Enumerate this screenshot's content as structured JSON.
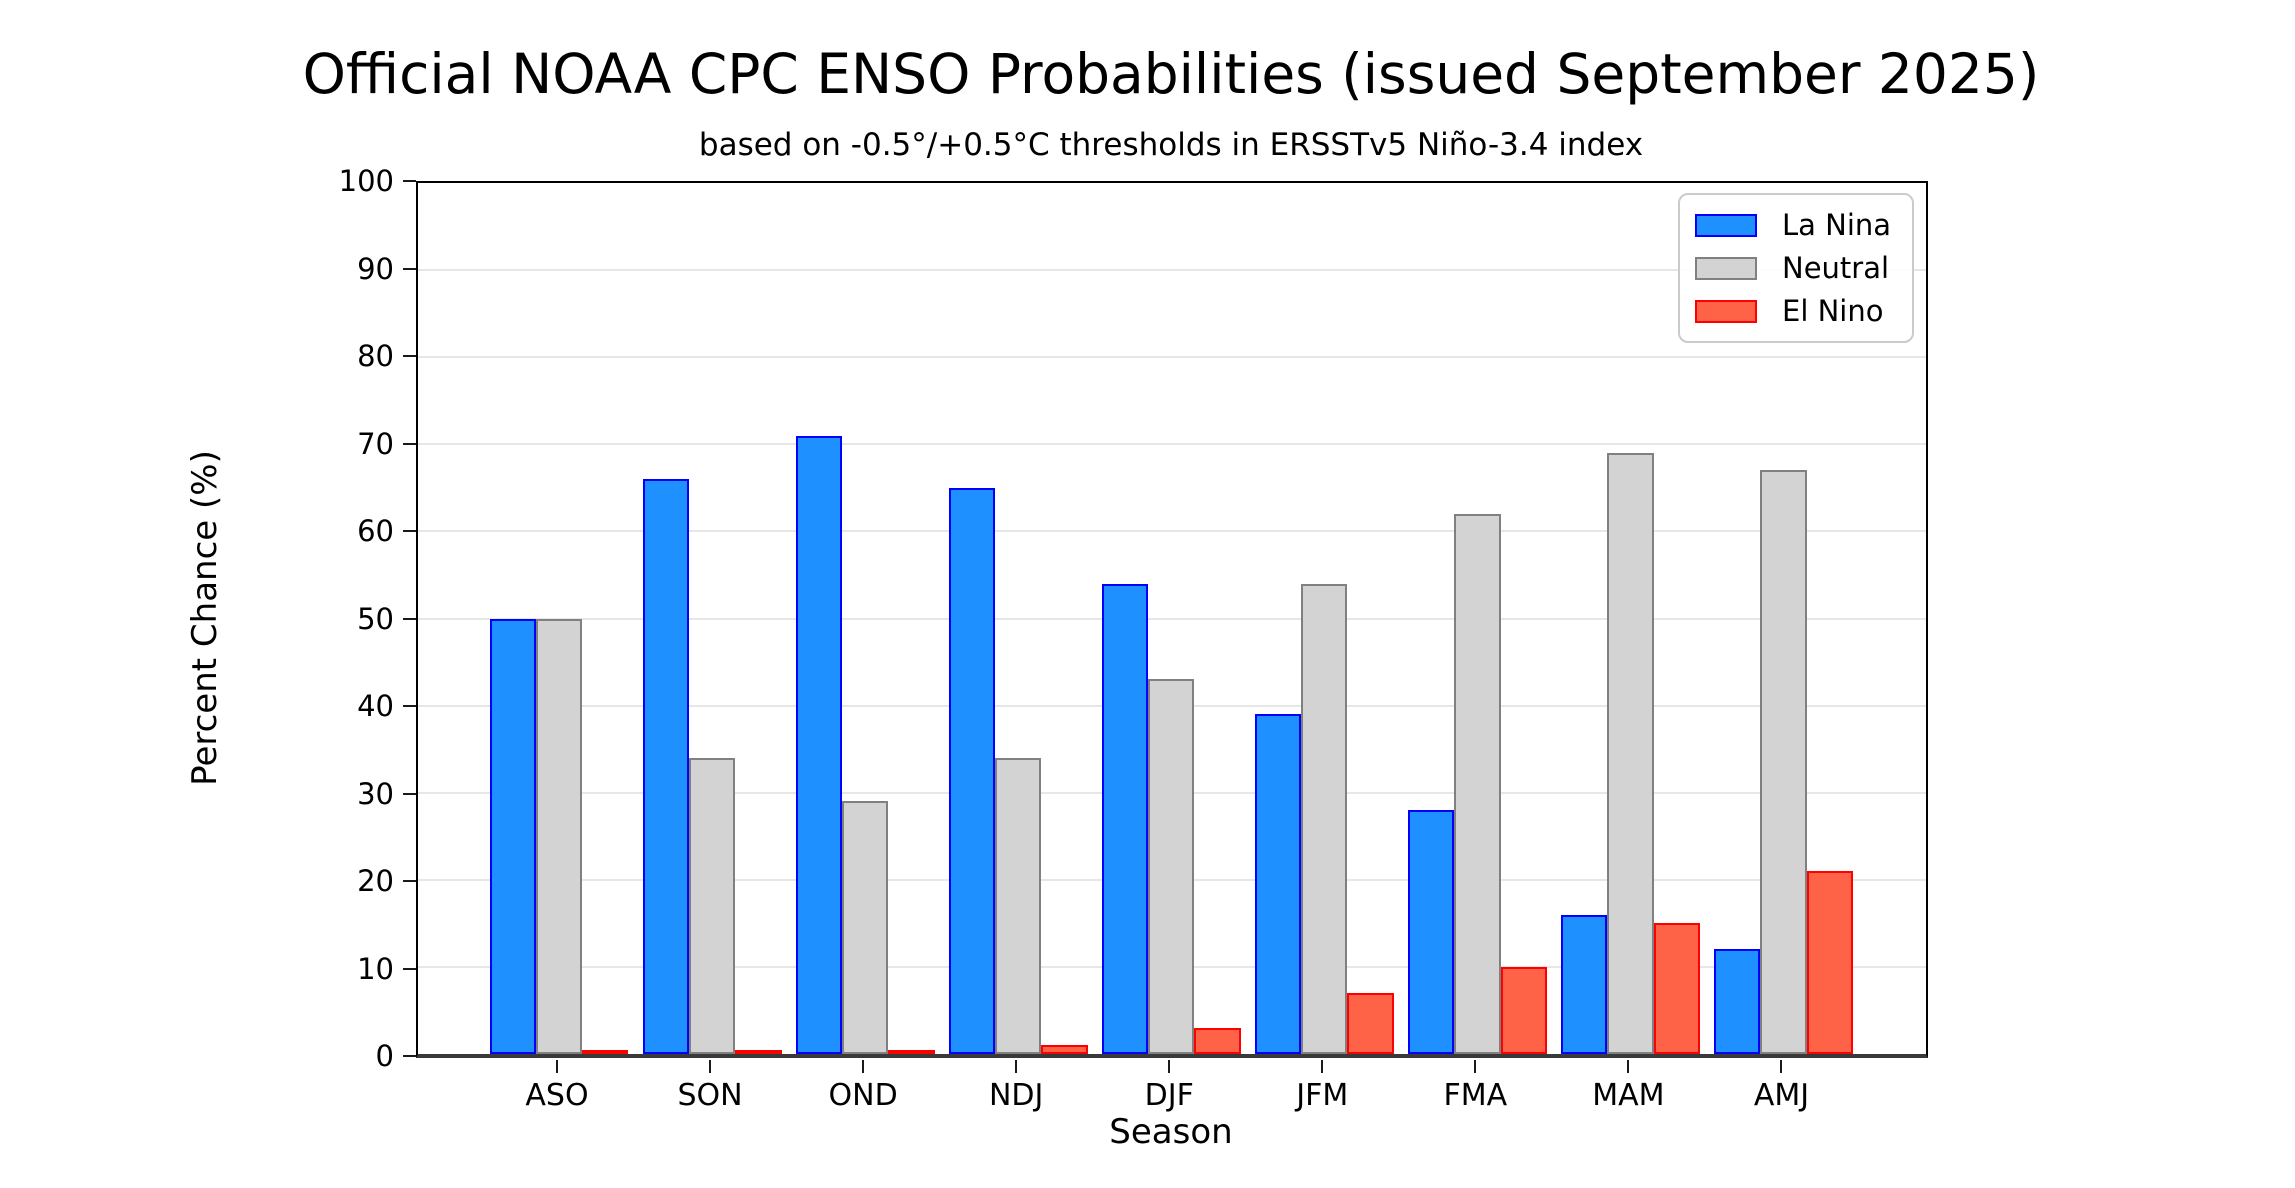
{
  "header": {
    "title": "Official NOAA CPC ENSO Probabilities (issued September 2025)",
    "subtitle": "based on -0.5°/+0.5°C thresholds in ERSSTv5 Niño-3.4 index"
  },
  "axes": {
    "x_label": "Season",
    "y_label": "Percent Chance (%)",
    "y_ticks": [
      0,
      10,
      20,
      30,
      40,
      50,
      60,
      70,
      80,
      90,
      100
    ],
    "y_min": 0,
    "y_max": 100
  },
  "legend": {
    "position": "upper right",
    "items": [
      {
        "label": "La Nina",
        "fill": "#1e90ff",
        "edge": "#0000ff"
      },
      {
        "label": "Neutral",
        "fill": "#d3d3d3",
        "edge": "#808080"
      },
      {
        "label": "El Nino",
        "fill": "#ff6347",
        "edge": "#ff0000"
      }
    ]
  },
  "chart_data": {
    "type": "bar",
    "title": "Official NOAA CPC ENSO Probabilities (issued September 2025)",
    "subtitle": "based on -0.5°/+0.5°C thresholds in ERSSTv5 Niño-3.4 index",
    "xlabel": "Season",
    "ylabel": "Percent Chance (%)",
    "ylim": [
      0,
      100
    ],
    "grid": "horizontal",
    "legend_position": "upper right",
    "categories": [
      "ASO",
      "SON",
      "OND",
      "NDJ",
      "DJF",
      "JFM",
      "FMA",
      "MAM",
      "AMJ"
    ],
    "series": [
      {
        "name": "La Nina",
        "color": "#1e90ff",
        "edge_color": "#0000ff",
        "values": [
          50,
          66,
          71,
          65,
          54,
          39,
          28,
          16,
          12
        ]
      },
      {
        "name": "Neutral",
        "color": "#d3d3d3",
        "edge_color": "#808080",
        "values": [
          50,
          34,
          29,
          34,
          43,
          54,
          62,
          69,
          67
        ]
      },
      {
        "name": "El Nino",
        "color": "#ff6347",
        "edge_color": "#ff0000",
        "values": [
          0,
          0,
          0,
          1,
          3,
          7,
          10,
          15,
          21
        ]
      }
    ]
  }
}
